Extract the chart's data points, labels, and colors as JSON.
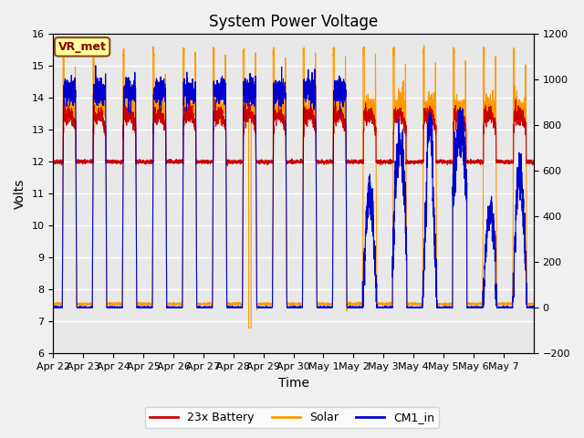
{
  "title": "System Power Voltage",
  "xlabel": "Time",
  "ylabel_left": "Volts",
  "ylim_left": [
    6.0,
    16.0
  ],
  "ylim_right": [
    -200,
    1200
  ],
  "annotation": "VR_met",
  "plot_bg_color": "#e8e8e8",
  "fig_bg_color": "#f0f0f0",
  "grid_color": "#ffffff",
  "legend_entries": [
    "23x Battery",
    "Solar",
    "CM1_in"
  ],
  "legend_colors": [
    "#cc0000",
    "#ff9900",
    "#0000cc"
  ],
  "xtick_labels": [
    "Apr 22",
    "Apr 23",
    "Apr 24",
    "Apr 25",
    "Apr 26",
    "Apr 27",
    "Apr 28",
    "Apr 29",
    "Apr 30",
    "May 1",
    "May 2",
    "May 3",
    "May 4",
    "May 5",
    "May 6",
    "May 7"
  ],
  "yticks_left": [
    6.0,
    7.0,
    8.0,
    9.0,
    10.0,
    11.0,
    12.0,
    13.0,
    14.0,
    15.0,
    16.0
  ],
  "yticks_right": [
    -200,
    0,
    200,
    400,
    600,
    800,
    1000,
    1200
  ],
  "num_days": 16
}
